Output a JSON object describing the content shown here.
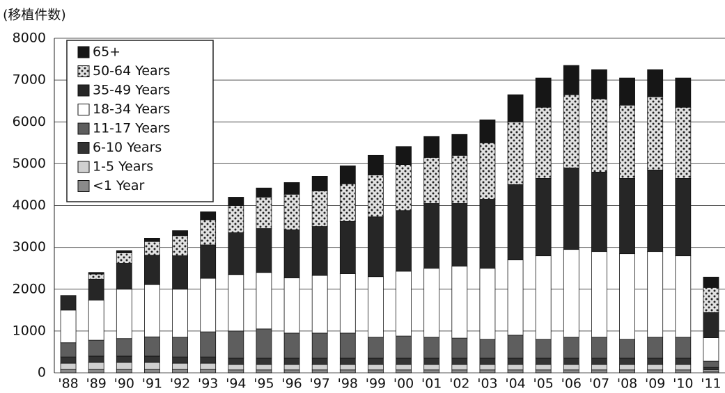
{
  "chart_data": {
    "type": "stacked_bar",
    "y_label": "(移植件数)",
    "categories": [
      "'88",
      "'89",
      "'90",
      "'91",
      "'92",
      "'93",
      "'94",
      "'95",
      "'96",
      "'97",
      "'98",
      "'99",
      "'00",
      "'01",
      "'02",
      "'03",
      "'04",
      "'05",
      "'06",
      "'07",
      "'08",
      "'09",
      "'10",
      "'11"
    ],
    "series": [
      {
        "name": "<1 Year",
        "color": "#8a8a8a",
        "values": [
          80,
          80,
          80,
          80,
          80,
          80,
          70,
          70,
          70,
          70,
          70,
          70,
          70,
          70,
          70,
          70,
          70,
          70,
          70,
          70,
          70,
          70,
          70,
          30
        ]
      },
      {
        "name": "1-5 Years",
        "color": "#d0d0d0",
        "values": [
          150,
          170,
          170,
          170,
          150,
          150,
          130,
          130,
          130,
          130,
          130,
          130,
          130,
          130,
          130,
          130,
          130,
          130,
          130,
          130,
          130,
          130,
          130,
          40
        ]
      },
      {
        "name": "6-10 Years",
        "color": "#333333",
        "values": [
          150,
          150,
          150,
          150,
          150,
          150,
          150,
          150,
          150,
          150,
          150,
          150,
          150,
          150,
          150,
          150,
          150,
          150,
          150,
          150,
          150,
          150,
          150,
          60
        ]
      },
      {
        "name": "11-17 Years",
        "color": "#5e5e5e",
        "values": [
          340,
          380,
          420,
          460,
          470,
          600,
          650,
          700,
          600,
          600,
          600,
          500,
          530,
          500,
          480,
          450,
          550,
          450,
          500,
          500,
          450,
          500,
          500,
          150
        ]
      },
      {
        "name": "18-34 Years",
        "color": "#ffffff",
        "values": [
          780,
          960,
          1180,
          1250,
          1150,
          1280,
          1350,
          1350,
          1320,
          1380,
          1420,
          1450,
          1550,
          1650,
          1720,
          1700,
          1800,
          2000,
          2100,
          2050,
          2050,
          2050,
          1950,
          560
        ]
      },
      {
        "name": "35-49 Years",
        "color": "#262626",
        "values": [
          350,
          500,
          620,
          700,
          800,
          800,
          1000,
          1050,
          1150,
          1170,
          1250,
          1430,
          1450,
          1550,
          1500,
          1650,
          1800,
          1850,
          1950,
          1900,
          1800,
          1950,
          1850,
          600
        ]
      },
      {
        "name": "50-64 Years",
        "color": "#e2e2e2",
        "values": [
          0,
          120,
          250,
          330,
          480,
          600,
          650,
          750,
          850,
          850,
          900,
          1000,
          1100,
          1100,
          1150,
          1350,
          1500,
          1700,
          1750,
          1750,
          1750,
          1750,
          1700,
          600
        ]
      },
      {
        "name": "65+",
        "color": "#161616",
        "values": [
          0,
          40,
          50,
          80,
          120,
          190,
          200,
          220,
          280,
          350,
          430,
          470,
          430,
          500,
          500,
          550,
          650,
          700,
          700,
          700,
          650,
          650,
          700,
          250
        ]
      }
    ],
    "ylim": [
      0,
      8000
    ],
    "yticks": [
      0,
      1000,
      2000,
      3000,
      4000,
      5000,
      6000,
      7000,
      8000
    ],
    "grid": true
  }
}
